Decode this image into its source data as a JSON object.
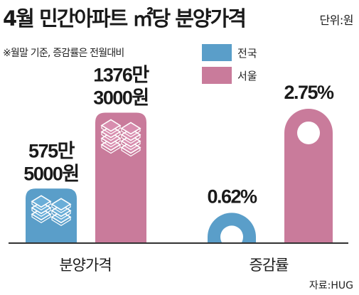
{
  "title": "4월 민간아파트 ㎡당 분양가격",
  "unit": "단위:원",
  "note": "※월말 기준, 증감률은 전월대비",
  "source": "자료:HUG",
  "colors": {
    "national": "#5a9ec9",
    "seoul": "#c97b9b",
    "nationalBook": "#6aaed8",
    "seoulBook": "#d88eaf",
    "axis": "#333333"
  },
  "chart_data": {
    "type": "bar",
    "title": "4월 민간아파트 ㎡당 분양가격",
    "categories": [
      "분양가격",
      "증감률"
    ],
    "legend": [
      "전국",
      "서울"
    ],
    "legend_position": "top-right",
    "panels": [
      {
        "category": "분양가격",
        "series": [
          {
            "name": "전국",
            "value": 5755000,
            "label_lines": [
              "575만",
              "5000원"
            ]
          },
          {
            "name": "서울",
            "value": 13763000,
            "label_lines": [
              "1376만",
              "3000원"
            ]
          }
        ]
      },
      {
        "category": "증감률",
        "series": [
          {
            "name": "전국",
            "value": 0.62,
            "label_lines": [
              "0.62%"
            ]
          },
          {
            "name": "서울",
            "value": 2.75,
            "label_lines": [
              "2.75%"
            ]
          }
        ]
      }
    ]
  }
}
